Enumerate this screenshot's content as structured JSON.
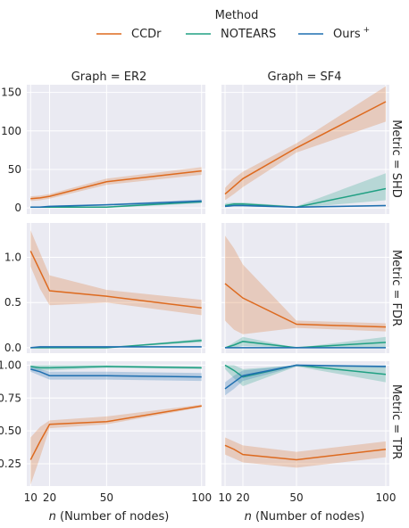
{
  "legend": {
    "title": "Method",
    "placement": "top-center",
    "entries": [
      {
        "name": "CCDr",
        "color": "#dd6a1f"
      },
      {
        "name": "NOTEARS",
        "color": "#20a083"
      },
      {
        "name": "Ours",
        "suffix": "+",
        "color": "#1f6fb0"
      }
    ]
  },
  "columns": [
    "Graph = ER2",
    "Graph = SF4"
  ],
  "rows": [
    "Metric = SHD",
    "Metric = FDR",
    "Metric = TPR"
  ],
  "xlabel_italic": "n",
  "xlabel": " (Number of nodes)",
  "chart_data": {
    "type": "line",
    "grid": true,
    "x": [
      10,
      15,
      20,
      50,
      100
    ],
    "xticks": [
      "10",
      "20",
      "50",
      "100"
    ],
    "xlim": [
      8,
      102
    ],
    "panels": [
      {
        "row": 0,
        "col": 0,
        "ylim": [
          -8,
          160
        ],
        "yticks": [
          "0",
          "50",
          "100",
          "150"
        ],
        "series": [
          {
            "name": "CCDr",
            "mean": [
              12,
              13,
              15,
              34,
              48
            ],
            "lo": [
              9,
              10,
              12,
              30,
              43
            ],
            "hi": [
              15,
              16,
              18,
              38,
              53
            ]
          },
          {
            "name": "NOTEARS",
            "mean": [
              1,
              1,
              1,
              1,
              8
            ],
            "lo": [
              0,
              0,
              0,
              0,
              6
            ],
            "hi": [
              2,
              2,
              2,
              2,
              10
            ]
          },
          {
            "name": "Ours",
            "mean": [
              1,
              1,
              2,
              4,
              9
            ],
            "lo": [
              0,
              0,
              1,
              3,
              7
            ],
            "hi": [
              2,
              2,
              3,
              5,
              11
            ]
          }
        ]
      },
      {
        "row": 0,
        "col": 1,
        "ylim": [
          -8,
          160
        ],
        "yticks": [],
        "series": [
          {
            "name": "CCDr",
            "mean": [
              18,
              28,
              38,
              78,
              138
            ],
            "lo": [
              10,
              18,
              27,
              72,
              112
            ],
            "hi": [
              26,
              38,
              47,
              84,
              158
            ]
          },
          {
            "name": "NOTEARS",
            "mean": [
              3,
              5,
              5,
              1,
              25
            ],
            "lo": [
              1,
              2,
              2,
              0,
              10
            ],
            "hi": [
              6,
              7,
              7,
              2,
              45
            ]
          },
          {
            "name": "Ours",
            "mean": [
              2,
              3,
              3,
              1,
              3
            ],
            "lo": [
              1,
              2,
              2,
              0,
              2
            ],
            "hi": [
              3,
              4,
              4,
              2,
              4
            ]
          }
        ]
      },
      {
        "row": 1,
        "col": 0,
        "ylim": [
          -0.06,
          1.38
        ],
        "yticks": [
          "0.0",
          "0.5",
          "1.0"
        ],
        "series": [
          {
            "name": "CCDr",
            "mean": [
              1.07,
              0.85,
              0.63,
              0.57,
              0.44
            ],
            "lo": [
              0.9,
              0.65,
              0.47,
              0.5,
              0.36
            ],
            "hi": [
              1.3,
              1.05,
              0.8,
              0.64,
              0.53
            ]
          },
          {
            "name": "NOTEARS",
            "mean": [
              0.0,
              0.0,
              0.0,
              0.0,
              0.08
            ],
            "lo": [
              0.0,
              0.0,
              0.0,
              0.0,
              0.06
            ],
            "hi": [
              0.0,
              0.0,
              0.0,
              0.0,
              0.1
            ]
          },
          {
            "name": "Ours",
            "mean": [
              0.0,
              0.01,
              0.01,
              0.01,
              0.01
            ],
            "lo": [
              0.0,
              0.0,
              0.0,
              0.0,
              0.0
            ],
            "hi": [
              0.01,
              0.02,
              0.02,
              0.02,
              0.02
            ]
          }
        ]
      },
      {
        "row": 1,
        "col": 1,
        "ylim": [
          -0.06,
          1.38
        ],
        "yticks": [],
        "series": [
          {
            "name": "CCDr",
            "mean": [
              0.71,
              0.63,
              0.55,
              0.26,
              0.23
            ],
            "lo": [
              0.3,
              0.2,
              0.15,
              0.22,
              0.18
            ],
            "hi": [
              1.24,
              1.1,
              0.92,
              0.3,
              0.27
            ]
          },
          {
            "name": "NOTEARS",
            "mean": [
              0.0,
              0.03,
              0.07,
              0.0,
              0.06
            ],
            "lo": [
              0.0,
              0.0,
              0.02,
              0.0,
              0.0
            ],
            "hi": [
              0.0,
              0.06,
              0.12,
              0.0,
              0.12
            ]
          },
          {
            "name": "Ours",
            "mean": [
              0.0,
              0.0,
              0.0,
              0.0,
              0.0
            ],
            "lo": [
              0.0,
              0.0,
              0.0,
              0.0,
              0.0
            ],
            "hi": [
              0.01,
              0.01,
              0.01,
              0.01,
              0.01
            ]
          }
        ]
      },
      {
        "row": 2,
        "col": 0,
        "ylim": [
          0.08,
          1.03
        ],
        "yticks": [
          "0.25",
          "0.50",
          "0.75",
          "1.00"
        ],
        "series": [
          {
            "name": "CCDr",
            "mean": [
              0.28,
              0.42,
              0.55,
              0.57,
              0.69
            ],
            "lo": [
              0.09,
              0.3,
              0.52,
              0.55,
              0.68
            ],
            "hi": [
              0.45,
              0.53,
              0.58,
              0.61,
              0.7
            ]
          },
          {
            "name": "NOTEARS",
            "mean": [
              0.99,
              0.98,
              0.98,
              0.99,
              0.98
            ],
            "lo": [
              0.97,
              0.96,
              0.96,
              0.98,
              0.97
            ],
            "hi": [
              1.0,
              1.0,
              1.0,
              1.0,
              0.99
            ]
          },
          {
            "name": "Ours",
            "mean": [
              0.97,
              0.95,
              0.92,
              0.92,
              0.91
            ],
            "lo": [
              0.95,
              0.92,
              0.89,
              0.89,
              0.88
            ],
            "hi": [
              0.99,
              0.97,
              0.95,
              0.95,
              0.94
            ]
          }
        ]
      },
      {
        "row": 2,
        "col": 1,
        "ylim": [
          0.08,
          1.03
        ],
        "yticks": [],
        "series": [
          {
            "name": "CCDr",
            "mean": [
              0.39,
              0.36,
              0.32,
              0.28,
              0.36
            ],
            "lo": [
              0.32,
              0.29,
              0.26,
              0.22,
              0.3
            ],
            "hi": [
              0.45,
              0.42,
              0.39,
              0.34,
              0.42
            ]
          },
          {
            "name": "NOTEARS",
            "mean": [
              1.0,
              0.96,
              0.91,
              1.0,
              0.93
            ],
            "lo": [
              0.97,
              0.9,
              0.84,
              0.99,
              0.87
            ],
            "hi": [
              1.0,
              1.0,
              0.97,
              1.0,
              0.99
            ]
          },
          {
            "name": "Ours",
            "mean": [
              0.82,
              0.87,
              0.92,
              1.0,
              0.99
            ],
            "lo": [
              0.77,
              0.82,
              0.88,
              0.99,
              0.98
            ],
            "hi": [
              0.87,
              0.92,
              0.96,
              1.0,
              1.0
            ]
          }
        ]
      }
    ]
  }
}
